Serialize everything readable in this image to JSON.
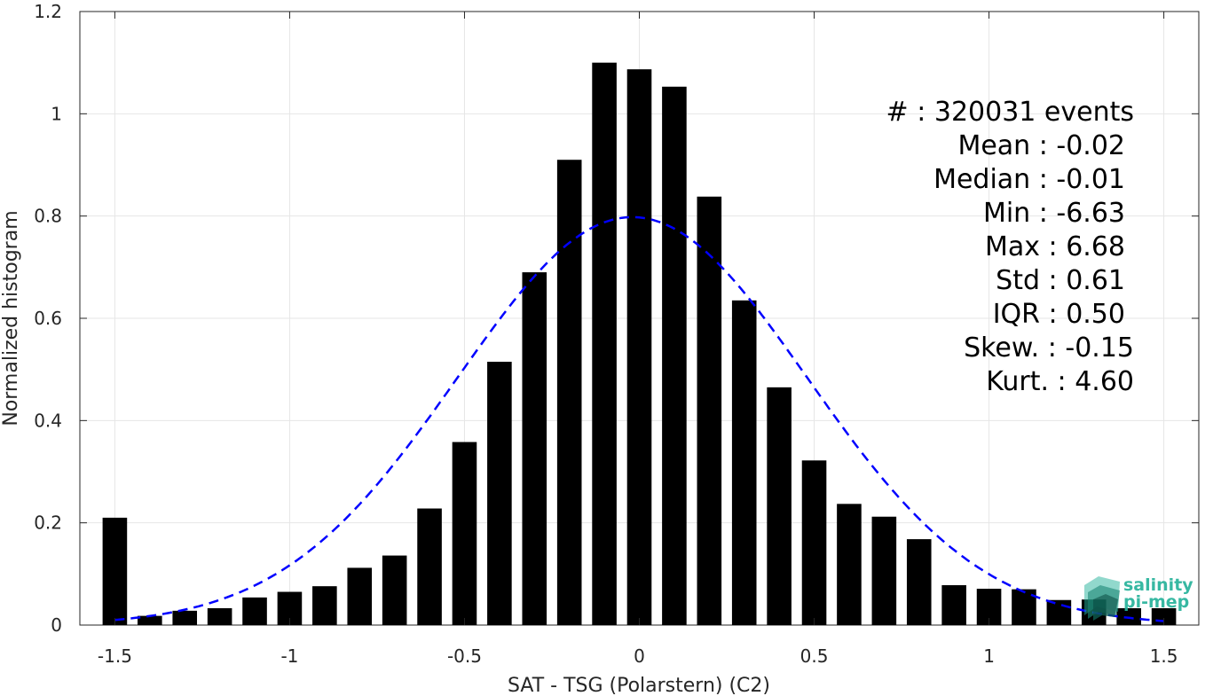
{
  "chart_data": {
    "type": "bar",
    "title": "",
    "xlabel": "SAT - TSG (Polarstern) (C2)",
    "ylabel": "Normalized histogram",
    "xlim": [
      -1.6,
      1.6
    ],
    "ylim": [
      0,
      1.2
    ],
    "grid": true,
    "x_ticks": [
      "-1.5",
      "-1",
      "-0.5",
      "0",
      "0.5",
      "1",
      "1.5"
    ],
    "x_tick_values": [
      -1.5,
      -1,
      -0.5,
      0,
      0.5,
      1,
      1.5
    ],
    "y_ticks": [
      "0",
      "0.2",
      "0.4",
      "0.6",
      "0.8",
      "1",
      "1.2"
    ],
    "y_tick_values": [
      0,
      0.2,
      0.4,
      0.6,
      0.8,
      1,
      1.2
    ],
    "bins": {
      "centers": [
        -1.5,
        -1.4,
        -1.3,
        -1.2,
        -1.1,
        -1.0,
        -0.9,
        -0.8,
        -0.7,
        -0.6,
        -0.5,
        -0.4,
        -0.3,
        -0.2,
        -0.1,
        0.0,
        0.1,
        0.2,
        0.3,
        0.4,
        0.5,
        0.6,
        0.7,
        0.8,
        0.9,
        1.0,
        1.1,
        1.2,
        1.3,
        1.4,
        1.5
      ],
      "values": [
        0.21,
        0.018,
        0.028,
        0.033,
        0.054,
        0.065,
        0.076,
        0.112,
        0.136,
        0.228,
        0.358,
        0.515,
        0.69,
        0.91,
        1.1,
        1.087,
        1.053,
        0.838,
        0.635,
        0.465,
        0.322,
        0.237,
        0.212,
        0.168,
        0.078,
        0.071,
        0.07,
        0.049,
        0.05,
        0.033,
        0.033
      ]
    },
    "series": [
      {
        "type": "line",
        "style": "dashed",
        "color": "#0000ff",
        "mean": -0.02,
        "std": 0.5
      }
    ],
    "bar_color": "#000000"
  },
  "stats": {
    "lines": [
      "#  : 320031 events",
      "Mean : -0.02",
      "Median : -0.01",
      "Min : -6.63",
      "Max : 6.68",
      "Std : 0.61",
      "IQR : 0.50",
      "Skew. : -0.15",
      "Kurt. : 4.60"
    ]
  },
  "logo": {
    "line1": "salinity",
    "line2": "pi-mep"
  }
}
